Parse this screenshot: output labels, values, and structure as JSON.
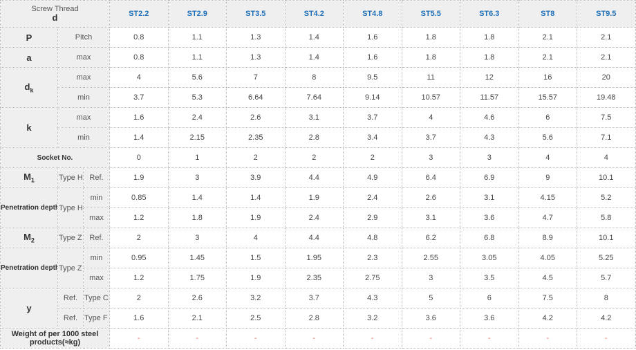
{
  "corner": {
    "top": "Screw Thread",
    "bottom": "d"
  },
  "columns": [
    "ST2.2",
    "ST2.9",
    "ST3.5",
    "ST4.2",
    "ST4.8",
    "ST5.5",
    "ST6.3",
    "ST8",
    "ST9.5"
  ],
  "labels": {
    "P": "P",
    "pitch": "Pitch",
    "a": "a",
    "max": "max",
    "min": "min",
    "dk_base": "d",
    "dk_sub": "k",
    "k": "k",
    "socket": "Socket No.",
    "m1_base": "M",
    "m1_sub": "1",
    "m2_base": "M",
    "m2_sub": "2",
    "type_h": "Type H",
    "type_z": "Type Z",
    "ref": "Ref.",
    "penetration": "Penetration depth",
    "y": "y",
    "type_c": "Type C",
    "type_f": "Type F",
    "weight": "Weight of per 1000 steel products(≈kg)"
  },
  "rows": {
    "pitch": [
      "0.8",
      "1.1",
      "1.3",
      "1.4",
      "1.6",
      "1.8",
      "1.8",
      "2.1",
      "2.1"
    ],
    "a_max": [
      "0.8",
      "1.1",
      "1.3",
      "1.4",
      "1.6",
      "1.8",
      "1.8",
      "2.1",
      "2.1"
    ],
    "dk_max": [
      "4",
      "5.6",
      "7",
      "8",
      "9.5",
      "11",
      "12",
      "16",
      "20"
    ],
    "dk_min": [
      "3.7",
      "5.3",
      "6.64",
      "7.64",
      "9.14",
      "10.57",
      "11.57",
      "15.57",
      "19.48"
    ],
    "k_max": [
      "1.6",
      "2.4",
      "2.6",
      "3.1",
      "3.7",
      "4",
      "4.6",
      "6",
      "7.5"
    ],
    "k_min": [
      "1.4",
      "2.15",
      "2.35",
      "2.8",
      "3.4",
      "3.7",
      "4.3",
      "5.6",
      "7.1"
    ],
    "socket": [
      "0",
      "1",
      "2",
      "2",
      "2",
      "3",
      "3",
      "4",
      "4"
    ],
    "m1_ref": [
      "1.9",
      "3",
      "3.9",
      "4.4",
      "4.9",
      "6.4",
      "6.9",
      "9",
      "10.1"
    ],
    "pen_h_min": [
      "0.85",
      "1.4",
      "1.4",
      "1.9",
      "2.4",
      "2.6",
      "3.1",
      "4.15",
      "5.2"
    ],
    "pen_h_max": [
      "1.2",
      "1.8",
      "1.9",
      "2.4",
      "2.9",
      "3.1",
      "3.6",
      "4.7",
      "5.8"
    ],
    "m2_ref": [
      "2",
      "3",
      "4",
      "4.4",
      "4.8",
      "6.2",
      "6.8",
      "8.9",
      "10.1"
    ],
    "pen_z_min": [
      "0.95",
      "1.45",
      "1.5",
      "1.95",
      "2.3",
      "2.55",
      "3.05",
      "4.05",
      "5.25"
    ],
    "pen_z_max": [
      "1.2",
      "1.75",
      "1.9",
      "2.35",
      "2.75",
      "3",
      "3.5",
      "4.5",
      "5.7"
    ],
    "y_c": [
      "2",
      "2.6",
      "3.2",
      "3.7",
      "4.3",
      "5",
      "6",
      "7.5",
      "8"
    ],
    "y_f": [
      "1.6",
      "2.1",
      "2.5",
      "2.8",
      "3.2",
      "3.6",
      "3.6",
      "4.2",
      "4.2"
    ],
    "weight": [
      "-",
      "-",
      "-",
      "-",
      "-",
      "-",
      "-",
      "-",
      "-"
    ]
  }
}
